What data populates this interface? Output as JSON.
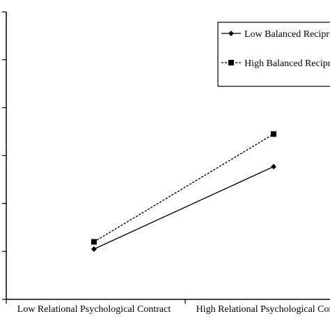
{
  "chart_data": {
    "type": "line",
    "title": "",
    "xlabel": "",
    "ylabel": "",
    "categories": [
      "Low Relational Psychological Contract",
      "High Relational Psychological Contract"
    ],
    "ylim": [
      0,
      6
    ],
    "y_grid_ticks": 6,
    "grid": false,
    "legend_position": "top-right",
    "series": [
      {
        "name": "Low Balanced Reciprocity",
        "values": [
          1.05,
          2.77
        ],
        "marker": "diamond",
        "line_style": "solid",
        "color": "#000000"
      },
      {
        "name": "High Balanced Reciprocity",
        "values": [
          1.2,
          3.45
        ],
        "marker": "square",
        "line_style": "dashed",
        "color": "#000000"
      }
    ]
  }
}
